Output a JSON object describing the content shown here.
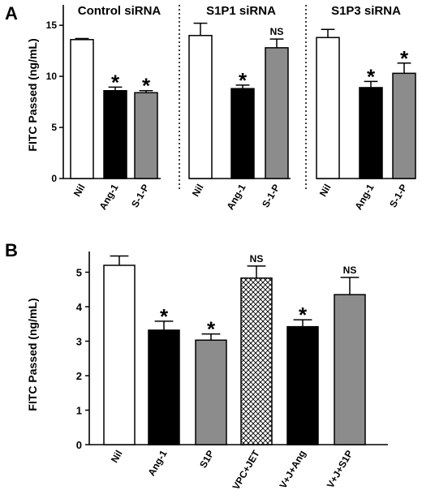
{
  "colors": {
    "nil": "#ffffff",
    "ang": "#000000",
    "s1p": "#8c8c8c",
    "stroke": "#000000"
  },
  "chart_data": [
    {
      "panel_label": "A",
      "type": "bar",
      "ylabel": "FITC Passed (ng/mL)",
      "ylim": [
        0,
        17
      ],
      "yticks": [
        "0",
        "5",
        "10",
        "15"
      ],
      "tick_values": [
        0,
        5,
        10,
        15
      ],
      "groups": [
        {
          "title": "Control siRNA",
          "bars": [
            {
              "label": "Nil",
              "value": 13.6,
              "err": 0.1,
              "fill": "nil",
              "annot": ""
            },
            {
              "label": "Ang-1",
              "value": 8.6,
              "err": 0.35,
              "fill": "ang",
              "annot": "*"
            },
            {
              "label": "S-1-P",
              "value": 8.4,
              "err": 0.2,
              "fill": "s1p",
              "annot": "*"
            }
          ]
        },
        {
          "title": "S1P1 siRNA",
          "bars": [
            {
              "label": "Nil",
              "value": 14.0,
              "err": 1.2,
              "fill": "nil",
              "annot": ""
            },
            {
              "label": "Ang-1",
              "value": 8.8,
              "err": 0.35,
              "fill": "ang",
              "annot": "*"
            },
            {
              "label": "S-1-P",
              "value": 12.8,
              "err": 0.85,
              "fill": "s1p",
              "annot": "NS"
            }
          ]
        },
        {
          "title": "S1P3 siRNA",
          "bars": [
            {
              "label": "Nil",
              "value": 13.8,
              "err": 0.8,
              "fill": "nil",
              "annot": ""
            },
            {
              "label": "Ang-1",
              "value": 8.9,
              "err": 0.6,
              "fill": "ang",
              "annot": "*"
            },
            {
              "label": "S-1-P",
              "value": 10.3,
              "err": 1.0,
              "fill": "s1p",
              "annot": "*"
            }
          ]
        }
      ]
    },
    {
      "panel_label": "B",
      "type": "bar",
      "ylabel": "FITC Passed (ng/mL)",
      "ylim": [
        0,
        5.6
      ],
      "yticks": [
        "0",
        "1",
        "2",
        "3",
        "4",
        "5"
      ],
      "tick_values": [
        0,
        1,
        2,
        3,
        4,
        5
      ],
      "bars": [
        {
          "label": "Nil",
          "value": 5.2,
          "err": 0.27,
          "fill": "nil",
          "annot": ""
        },
        {
          "label": "Ang-1",
          "value": 3.32,
          "err": 0.26,
          "fill": "ang",
          "annot": "*"
        },
        {
          "label": "S1P",
          "value": 3.03,
          "err": 0.18,
          "fill": "s1p",
          "annot": "*"
        },
        {
          "label": "VPC+JET",
          "value": 4.83,
          "err": 0.35,
          "fill": "hatch",
          "annot": "NS"
        },
        {
          "label": "V+J+Ang",
          "value": 3.42,
          "err": 0.2,
          "fill": "ang",
          "annot": "*"
        },
        {
          "label": "V+J+S1P",
          "value": 4.35,
          "err": 0.5,
          "fill": "s1p",
          "annot": "NS"
        }
      ]
    }
  ]
}
